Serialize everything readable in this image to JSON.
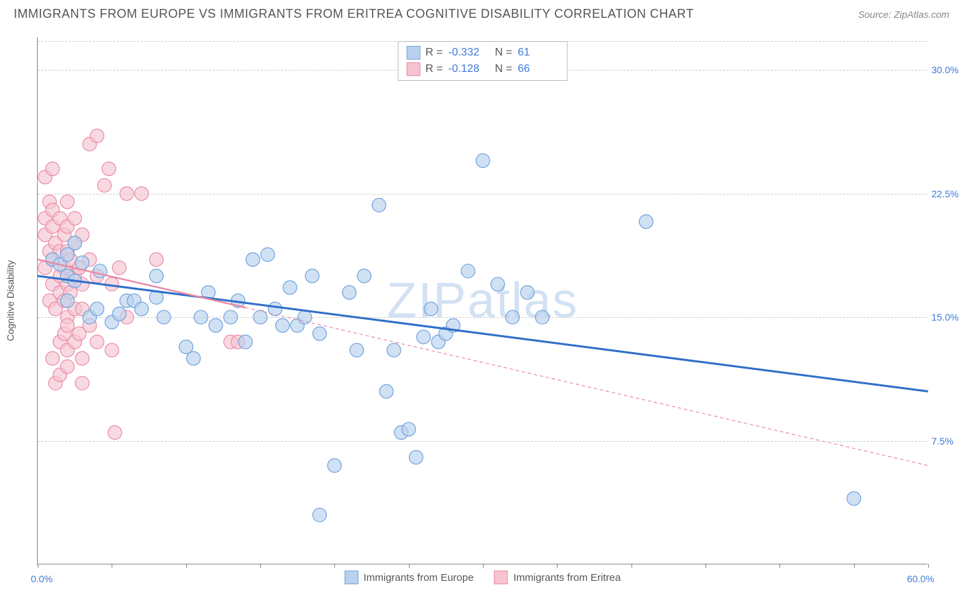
{
  "title": "IMMIGRANTS FROM EUROPE VS IMMIGRANTS FROM ERITREA COGNITIVE DISABILITY CORRELATION CHART",
  "source_label": "Source: ",
  "source_name": "ZipAtlas.com",
  "watermark": "ZIPatlas",
  "y_axis_title": "Cognitive Disability",
  "chart": {
    "type": "scatter",
    "xlim": [
      0,
      60
    ],
    "ylim": [
      0,
      32
    ],
    "x_min_label": "0.0%",
    "x_max_label": "60.0%",
    "xtick_positions": [
      0,
      5,
      10,
      15,
      20,
      25,
      30,
      35,
      40,
      45,
      50,
      55,
      60
    ],
    "y_gridlines": [
      7.5,
      15.0,
      22.5,
      30.0
    ],
    "y_tick_labels": [
      "7.5%",
      "15.0%",
      "22.5%",
      "30.0%"
    ],
    "background_color": "#ffffff",
    "grid_color": "#cccccc",
    "axis_color": "#888888",
    "tick_label_color": "#3b78d8",
    "series": [
      {
        "name": "Immigrants from Europe",
        "color_fill": "#b9d1ee",
        "color_stroke": "#6fa3dc",
        "marker_radius": 10,
        "fill_opacity": 0.65,
        "trend": {
          "x1": 0,
          "y1": 17.5,
          "x2": 60,
          "y2": 10.5,
          "stroke": "#2f6fc9",
          "width": 3,
          "dash": "none"
        },
        "R": "-0.332",
        "N": "61",
        "points": [
          [
            1,
            18.5
          ],
          [
            1.5,
            18.2
          ],
          [
            2,
            17.5
          ],
          [
            2,
            18.8
          ],
          [
            2.5,
            17.2
          ],
          [
            2.5,
            19.5
          ],
          [
            2,
            16.0
          ],
          [
            3,
            18.3
          ],
          [
            3.5,
            15.0
          ],
          [
            4,
            15.5
          ],
          [
            4.2,
            17.8
          ],
          [
            5,
            14.7
          ],
          [
            5.5,
            15.2
          ],
          [
            6,
            16.0
          ],
          [
            6.5,
            16.0
          ],
          [
            7,
            15.5
          ],
          [
            8,
            16.2
          ],
          [
            8.5,
            15.0
          ],
          [
            8,
            17.5
          ],
          [
            10,
            13.2
          ],
          [
            10.5,
            12.5
          ],
          [
            11,
            15.0
          ],
          [
            11.5,
            16.5
          ],
          [
            12,
            14.5
          ],
          [
            13,
            15.0
          ],
          [
            13.5,
            16.0
          ],
          [
            14,
            13.5
          ],
          [
            14.5,
            18.5
          ],
          [
            15,
            15.0
          ],
          [
            15.5,
            18.8
          ],
          [
            16,
            15.5
          ],
          [
            16.5,
            14.5
          ],
          [
            17,
            16.8
          ],
          [
            17.5,
            14.5
          ],
          [
            18,
            15.0
          ],
          [
            18.5,
            17.5
          ],
          [
            19,
            14.0
          ],
          [
            19,
            3.0
          ],
          [
            20,
            6.0
          ],
          [
            21,
            16.5
          ],
          [
            21.5,
            13.0
          ],
          [
            22,
            17.5
          ],
          [
            23,
            21.8
          ],
          [
            23.5,
            10.5
          ],
          [
            24,
            13.0
          ],
          [
            24.5,
            8.0
          ],
          [
            25,
            8.2
          ],
          [
            25.5,
            6.5
          ],
          [
            26,
            13.8
          ],
          [
            26.5,
            15.5
          ],
          [
            27,
            13.5
          ],
          [
            27.5,
            14.0
          ],
          [
            28,
            14.5
          ],
          [
            29,
            17.8
          ],
          [
            30,
            24.5
          ],
          [
            31,
            17.0
          ],
          [
            32,
            15.0
          ],
          [
            33,
            16.5
          ],
          [
            34,
            15.0
          ],
          [
            41,
            20.8
          ],
          [
            55,
            4.0
          ]
        ]
      },
      {
        "name": "Immigrants from Eritrea",
        "color_fill": "#f6c4d1",
        "color_stroke": "#e98ba6",
        "marker_radius": 10,
        "fill_opacity": 0.65,
        "trend": {
          "x1": 0,
          "y1": 18.5,
          "x2": 60,
          "y2": 6.0,
          "stroke": "#e98ba6",
          "width": 1.2,
          "dash": "5,4",
          "solid_until_x": 14
        },
        "R": "-0.128",
        "N": "66",
        "points": [
          [
            0.5,
            23.5
          ],
          [
            0.5,
            21.0
          ],
          [
            0.5,
            20.0
          ],
          [
            0.5,
            18.0
          ],
          [
            0.8,
            22.0
          ],
          [
            0.8,
            19.0
          ],
          [
            0.8,
            16.0
          ],
          [
            1,
            24.0
          ],
          [
            1,
            21.5
          ],
          [
            1,
            20.5
          ],
          [
            1,
            18.5
          ],
          [
            1,
            17.0
          ],
          [
            1,
            12.5
          ],
          [
            1.2,
            19.5
          ],
          [
            1.2,
            15.5
          ],
          [
            1.2,
            11.0
          ],
          [
            1.5,
            21.0
          ],
          [
            1.5,
            19.0
          ],
          [
            1.5,
            17.5
          ],
          [
            1.5,
            16.5
          ],
          [
            1.5,
            13.5
          ],
          [
            1.5,
            11.5
          ],
          [
            1.8,
            20.0
          ],
          [
            1.8,
            18.0
          ],
          [
            1.8,
            16.0
          ],
          [
            1.8,
            14.0
          ],
          [
            2,
            22.0
          ],
          [
            2,
            20.5
          ],
          [
            2,
            19.0
          ],
          [
            2,
            17.0
          ],
          [
            2,
            15.0
          ],
          [
            2,
            14.5
          ],
          [
            2,
            13.0
          ],
          [
            2,
            12.0
          ],
          [
            2.2,
            18.5
          ],
          [
            2.2,
            16.5
          ],
          [
            2.5,
            21.0
          ],
          [
            2.5,
            19.5
          ],
          [
            2.5,
            17.5
          ],
          [
            2.5,
            15.5
          ],
          [
            2.5,
            13.5
          ],
          [
            2.8,
            18.0
          ],
          [
            2.8,
            14.0
          ],
          [
            3,
            20.0
          ],
          [
            3,
            17.0
          ],
          [
            3,
            15.5
          ],
          [
            3,
            12.5
          ],
          [
            3,
            11.0
          ],
          [
            3.5,
            25.5
          ],
          [
            3.5,
            18.5
          ],
          [
            3.5,
            14.5
          ],
          [
            4,
            26.0
          ],
          [
            4,
            17.5
          ],
          [
            4,
            13.5
          ],
          [
            4.5,
            23.0
          ],
          [
            4.8,
            24.0
          ],
          [
            5,
            17.0
          ],
          [
            5,
            13.0
          ],
          [
            5.2,
            8.0
          ],
          [
            5.5,
            18.0
          ],
          [
            6,
            22.5
          ],
          [
            6,
            15.0
          ],
          [
            7,
            22.5
          ],
          [
            8,
            18.5
          ],
          [
            13,
            13.5
          ],
          [
            13.5,
            13.5
          ]
        ]
      }
    ]
  },
  "stats_box": {
    "r_label": "R  =",
    "n_label": "N  =",
    "rows": [
      {
        "swatch_fill": "#b9d1ee",
        "swatch_stroke": "#6fa3dc",
        "r": "-0.332",
        "n": "61"
      },
      {
        "swatch_fill": "#f6c4d1",
        "swatch_stroke": "#e98ba6",
        "r": "-0.128",
        "n": "66"
      }
    ]
  },
  "bottom_legend": {
    "items": [
      {
        "swatch_fill": "#b9d1ee",
        "swatch_stroke": "#6fa3dc",
        "label": "Immigrants from Europe"
      },
      {
        "swatch_fill": "#f6c4d1",
        "swatch_stroke": "#e98ba6",
        "label": "Immigrants from Eritrea"
      }
    ]
  }
}
